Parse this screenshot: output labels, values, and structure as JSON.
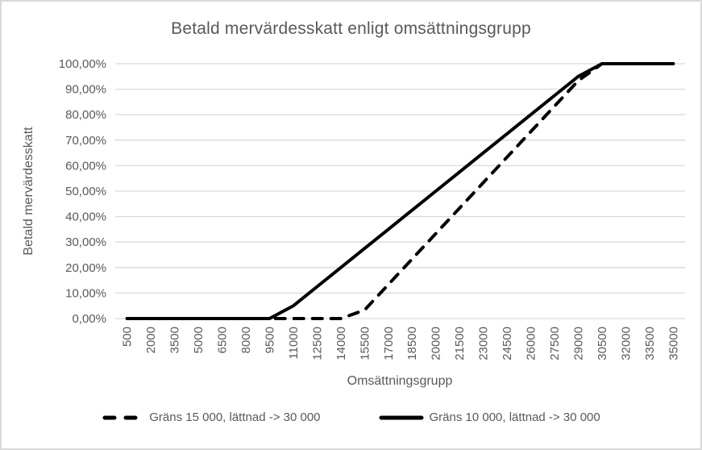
{
  "chart_data": {
    "type": "line",
    "title": "Betald mervärdesskatt enligt omsättningsgrupp",
    "xlabel": "Omsättningsgrupp",
    "ylabel": "Betald mervärdesskatt",
    "categories": [
      "500",
      "2000",
      "3500",
      "5000",
      "6500",
      "8000",
      "9500",
      "11000",
      "12500",
      "14000",
      "15500",
      "17000",
      "18500",
      "20000",
      "21500",
      "23000",
      "24500",
      "26000",
      "27500",
      "29000",
      "30500",
      "32000",
      "33500",
      "35000"
    ],
    "ytick_labels": [
      "0,00%",
      "10,00%",
      "20,00%",
      "30,00%",
      "40,00%",
      "50,00%",
      "60,00%",
      "70,00%",
      "80,00%",
      "90,00%",
      "100,00%"
    ],
    "ylim": [
      0,
      100
    ],
    "grid": "horizontal",
    "legend_position": "bottom",
    "series": [
      {
        "name": "Gräns 15 000, lättnad -> 30 000",
        "style": "dashed",
        "color": "#000000",
        "values": [
          0,
          0,
          0,
          0,
          0,
          0,
          0,
          0,
          0,
          0,
          3.33,
          13.33,
          23.33,
          33.33,
          43.33,
          53.33,
          63.33,
          73.33,
          83.33,
          93.33,
          100,
          100,
          100,
          100
        ]
      },
      {
        "name": "Gräns 10 000, lättnad -> 30 000",
        "style": "solid",
        "color": "#000000",
        "values": [
          0,
          0,
          0,
          0,
          0,
          0,
          0,
          5,
          12.5,
          20,
          27.5,
          35,
          42.5,
          50,
          57.5,
          65,
          72.5,
          80,
          87.5,
          95,
          100,
          100,
          100,
          100
        ]
      }
    ],
    "colors": {
      "line": "#000000",
      "text": "#595959",
      "grid": "#D9D9D9",
      "border": "#D9D9D9",
      "background": "#FFFFFF"
    }
  }
}
